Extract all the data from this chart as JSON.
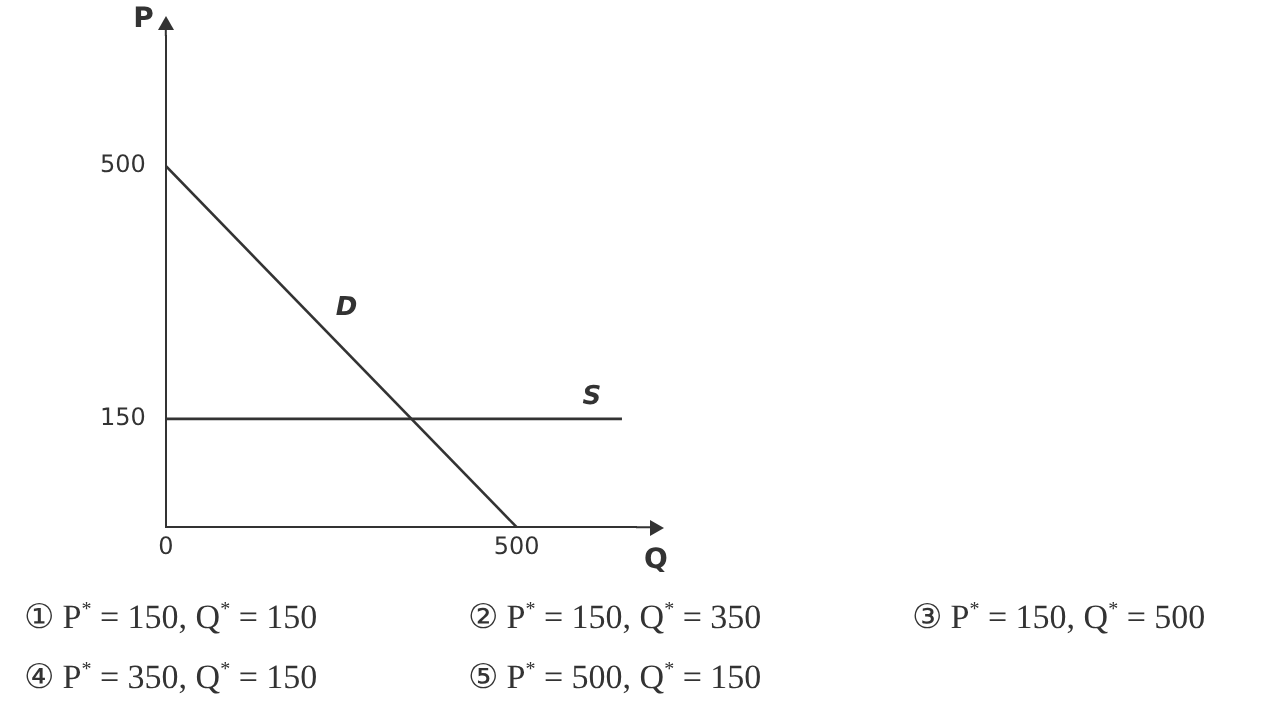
{
  "chart_data": {
    "type": "line",
    "xlabel": "Q",
    "ylabel": "P",
    "xlim": [
      0,
      670
    ],
    "ylim": [
      0,
      680
    ],
    "xticks": [
      0,
      500
    ],
    "yticks": [
      150,
      500
    ],
    "grid": false,
    "legend": false,
    "marker": "none",
    "line_style": "solid",
    "series": [
      {
        "name": "D",
        "color": "#333333",
        "x": [
          0,
          500
        ],
        "values": [
          500,
          0
        ]
      },
      {
        "name": "S",
        "color": "#333333",
        "x": [
          0,
          650
        ],
        "values": [
          150,
          150
        ]
      }
    ],
    "annotations": [
      "① P$^{*}$ = 150,  Q$^{*}$ = 150",
      "② P$^{*}$ = 150,  Q$^{*}$ = 350",
      "③ P$^{*}$ = 150,  Q$^{*}$ = 500",
      "④ P$^{*}$ = 350,  Q$^{*}$ = 150",
      "⑤ P$^{*}$ = 500,  Q$^{*}$ = 150"
    ]
  }
}
